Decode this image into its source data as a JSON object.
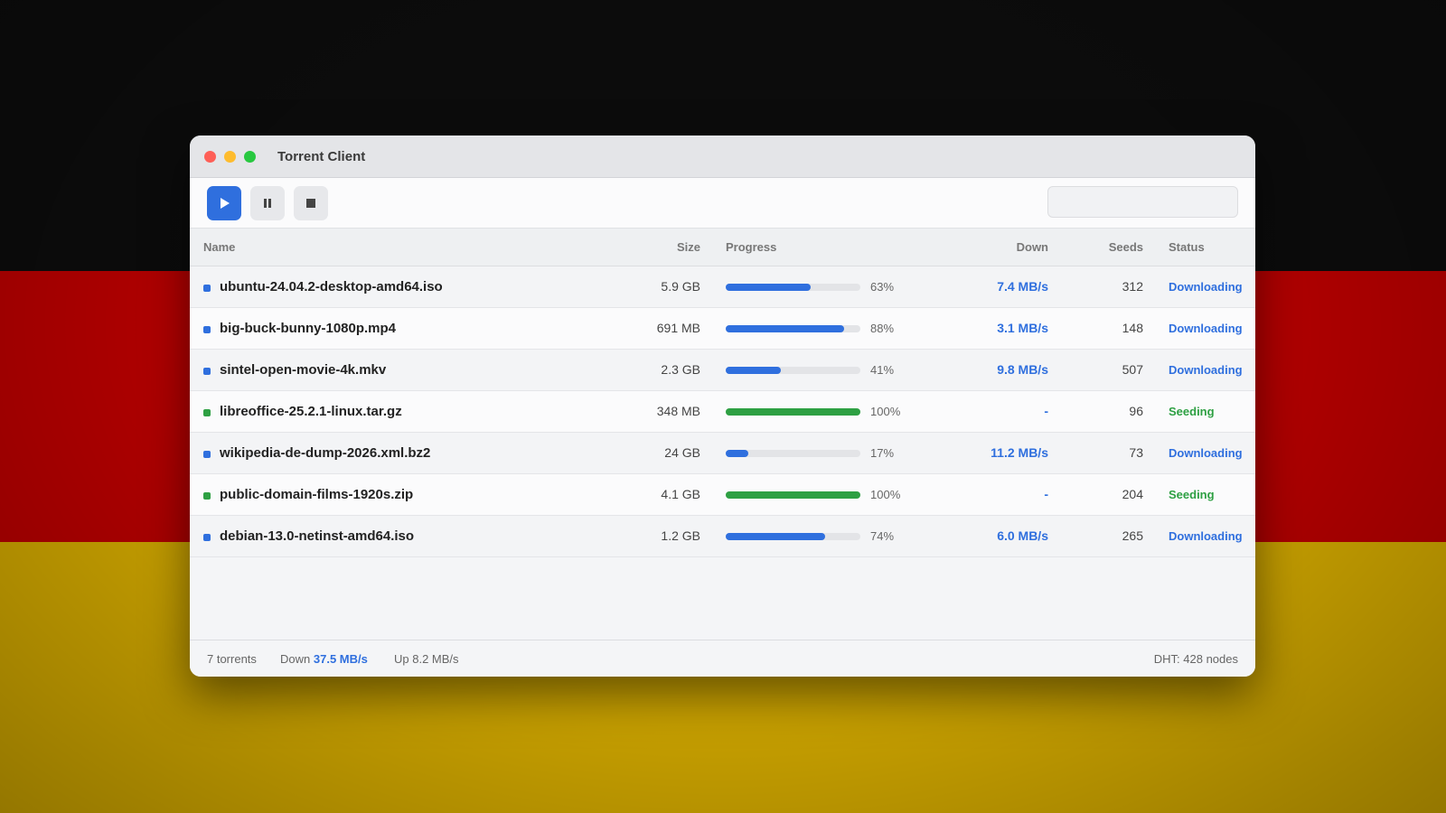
{
  "window": {
    "title": "Torrent Client"
  },
  "table": {
    "columns": [
      "Name",
      "Size",
      "Progress",
      "Down",
      "Seeds",
      "Status"
    ],
    "rows": [
      {
        "name": "ubuntu-24.04.2-desktop-amd64.iso",
        "size": "5.9 GB",
        "progress": 63,
        "progress_label": "63%",
        "down": "7.4 MB/s",
        "seeds": 312,
        "status": "Downloading",
        "color": "#2f6fde"
      },
      {
        "name": "big-buck-bunny-1080p.mp4",
        "size": "691 MB",
        "progress": 88,
        "progress_label": "88%",
        "down": "3.1 MB/s",
        "seeds": 148,
        "status": "Downloading",
        "color": "#2f6fde"
      },
      {
        "name": "sintel-open-movie-4k.mkv",
        "size": "2.3 GB",
        "progress": 41,
        "progress_label": "41%",
        "down": "9.8 MB/s",
        "seeds": 507,
        "status": "Downloading",
        "color": "#2f6fde"
      },
      {
        "name": "libreoffice-25.2.1-linux.tar.gz",
        "size": "348 MB",
        "progress": 100,
        "progress_label": "100%",
        "down": "-",
        "seeds": 96,
        "status": "Seeding",
        "color": "#2ea043"
      },
      {
        "name": "wikipedia-de-dump-2026.xml.bz2",
        "size": "24 GB",
        "progress": 17,
        "progress_label": "17%",
        "down": "11.2 MB/s",
        "seeds": 73,
        "status": "Downloading",
        "color": "#2f6fde"
      },
      {
        "name": "public-domain-films-1920s.zip",
        "size": "4.1 GB",
        "progress": 100,
        "progress_label": "100%",
        "down": "-",
        "seeds": 204,
        "status": "Seeding",
        "color": "#2ea043"
      },
      {
        "name": "debian-13.0-netinst-amd64.iso",
        "size": "1.2 GB",
        "progress": 74,
        "progress_label": "74%",
        "down": "6.0 MB/s",
        "seeds": 265,
        "status": "Downloading",
        "color": "#2f6fde"
      }
    ]
  },
  "footer": {
    "count": "7 torrents",
    "down_label": "Down",
    "down_value": "37.5 MB/s",
    "up": "Up 8.2 MB/s",
    "dht": "DHT: 428 nodes"
  }
}
